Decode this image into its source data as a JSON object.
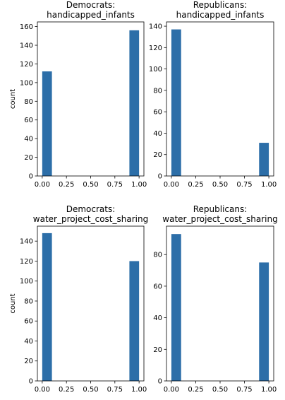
{
  "chart_data": [
    {
      "type": "bar",
      "title": [
        "Democrats:",
        "handicapped_infants"
      ],
      "ylabel": "count",
      "xlim": [
        -0.05,
        1.05
      ],
      "ylim": [
        0,
        165
      ],
      "xticks": [
        0.0,
        0.25,
        0.5,
        0.75,
        1.0
      ],
      "xtick_labels": [
        "0.00",
        "0.25",
        "0.50",
        "0.75",
        "1.00"
      ],
      "yticks": [
        0,
        20,
        40,
        60,
        80,
        100,
        120,
        140,
        160
      ],
      "bars": [
        {
          "x0": 0.0,
          "x1": 0.1,
          "value": 112
        },
        {
          "x0": 0.9,
          "x1": 1.0,
          "value": 156
        }
      ],
      "color": "#2c6ea8"
    },
    {
      "type": "bar",
      "title": [
        "Republicans:",
        "handicapped_infants"
      ],
      "ylabel": "",
      "xlim": [
        -0.05,
        1.05
      ],
      "ylim": [
        0,
        144
      ],
      "xticks": [
        0.0,
        0.25,
        0.5,
        0.75,
        1.0
      ],
      "xtick_labels": [
        "0.00",
        "0.25",
        "0.50",
        "0.75",
        "1.00"
      ],
      "yticks": [
        0,
        20,
        40,
        60,
        80,
        100,
        120,
        140
      ],
      "bars": [
        {
          "x0": 0.0,
          "x1": 0.1,
          "value": 137
        },
        {
          "x0": 0.9,
          "x1": 1.0,
          "value": 31
        }
      ],
      "color": "#2c6ea8"
    },
    {
      "type": "bar",
      "title": [
        "Democrats:",
        "water_project_cost_sharing"
      ],
      "ylabel": "count",
      "xlim": [
        -0.05,
        1.05
      ],
      "ylim": [
        0,
        155
      ],
      "xticks": [
        0.0,
        0.25,
        0.5,
        0.75,
        1.0
      ],
      "xtick_labels": [
        "0.00",
        "0.25",
        "0.50",
        "0.75",
        "1.00"
      ],
      "yticks": [
        0,
        20,
        40,
        60,
        80,
        100,
        120,
        140
      ],
      "bars": [
        {
          "x0": 0.0,
          "x1": 0.1,
          "value": 148
        },
        {
          "x0": 0.9,
          "x1": 1.0,
          "value": 120
        }
      ],
      "color": "#2c6ea8"
    },
    {
      "type": "bar",
      "title": [
        "Republicans:",
        "water_project_cost_sharing"
      ],
      "ylabel": "",
      "xlim": [
        -0.05,
        1.05
      ],
      "ylim": [
        0,
        98
      ],
      "xticks": [
        0.0,
        0.25,
        0.5,
        0.75,
        1.0
      ],
      "xtick_labels": [
        "0.00",
        "0.25",
        "0.50",
        "0.75",
        "1.00"
      ],
      "yticks": [
        0,
        20,
        40,
        60,
        80
      ],
      "bars": [
        {
          "x0": 0.0,
          "x1": 0.1,
          "value": 93
        },
        {
          "x0": 0.9,
          "x1": 1.0,
          "value": 75
        }
      ],
      "color": "#2c6ea8"
    }
  ]
}
